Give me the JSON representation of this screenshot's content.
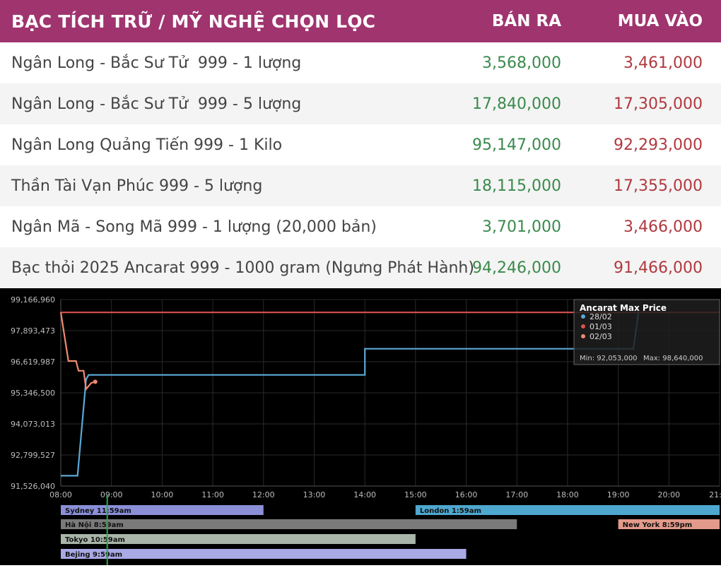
{
  "table": {
    "headers": [
      "BẠC TÍCH TRỮ / MỸ NGHỆ CHỌN LỌC",
      "BÁN RA",
      "MUA VÀO"
    ],
    "rows": [
      {
        "name": "Ngân Long - Bắc Sư Tử  999 - 1 lượng",
        "sell": "3,568,000",
        "buy": "3,461,000"
      },
      {
        "name": "Ngân Long - Bắc Sư Tử  999 - 5 lượng",
        "sell": "17,840,000",
        "buy": "17,305,000"
      },
      {
        "name": "Ngân Long Quảng Tiến 999 - 1 Kilo",
        "sell": "95,147,000",
        "buy": "92,293,000"
      },
      {
        "name": "Thần Tài Vạn Phúc 999 - 5 lượng",
        "sell": "18,115,000",
        "buy": "17,355,000"
      },
      {
        "name": "Ngân Mã - Song Mã 999 - 1 lượng (20,000 bản)",
        "sell": "3,701,000",
        "buy": "3,466,000"
      },
      {
        "name": "Bạc thỏi 2025 Ancarat 999 - 1000 gram (Ngưng Phát Hành)",
        "sell": "94,246,000",
        "buy": "91,466,000"
      }
    ]
  },
  "chart_data": {
    "type": "line",
    "title": "Ancarat Max Price",
    "x_tick_labels": [
      "08:00",
      "09:00",
      "10:00",
      "11:00",
      "12:00",
      "13:00",
      "14:00",
      "15:00",
      "16:00",
      "17:00",
      "18:00",
      "19:00",
      "20:00",
      "21:"
    ],
    "y_tick_labels": [
      "99,166,960",
      "97,893,473",
      "96,619,987",
      "95,346,500",
      "94,073,013",
      "92,799,527",
      "91,526,040"
    ],
    "xlim_hours": [
      8.0,
      21.0
    ],
    "ylim": [
      91526040,
      99166960
    ],
    "grid": true,
    "legend_position": "top-right",
    "series": [
      {
        "name": "28/02",
        "color": "#5aa9d6",
        "x": [
          8.0,
          8.33,
          8.5,
          8.55,
          14.0,
          14.0,
          19.3,
          19.4
        ],
        "y": [
          91950000,
          91950000,
          95900000,
          96080000,
          96080000,
          97150000,
          97150000,
          98640000
        ]
      },
      {
        "name": "01/03",
        "color": "#d9534f",
        "x": [
          8.0,
          21.0
        ],
        "y": [
          98640000,
          98640000
        ]
      },
      {
        "name": "02/03",
        "color": "#f08a70",
        "x": [
          8.0,
          8.15,
          8.3,
          8.35,
          8.45,
          8.5,
          8.6,
          8.68
        ],
        "y": [
          98640000,
          96650000,
          96650000,
          96250000,
          96250000,
          95500000,
          95750000,
          95800000
        ]
      }
    ],
    "stats": {
      "min_label": "Min: 92,053,000",
      "max_label": "Max: 98,640,000"
    },
    "sessions": [
      {
        "label": "Sydney 11:59am",
        "start": 8.0,
        "end": 12.0,
        "color": "#8a8fd8"
      },
      {
        "label": "London 1:59am",
        "start": 15.0,
        "end": 21.0,
        "color": "#4ea7cf"
      },
      {
        "label": "Hà Nội 8:59am",
        "start": 8.0,
        "end": 17.0,
        "color": "#7a7a7a"
      },
      {
        "label": "New York 8:59pm",
        "start": 19.0,
        "end": 21.0,
        "color": "#e29a8a"
      },
      {
        "label": "Tokyo 10:59am",
        "start": 8.0,
        "end": 15.0,
        "color": "#a9b5a9"
      },
      {
        "label": "Bejing 9:59am",
        "start": 8.0,
        "end": 16.0,
        "color": "#a9a9e6"
      }
    ],
    "current_time_hours": 9.0
  }
}
